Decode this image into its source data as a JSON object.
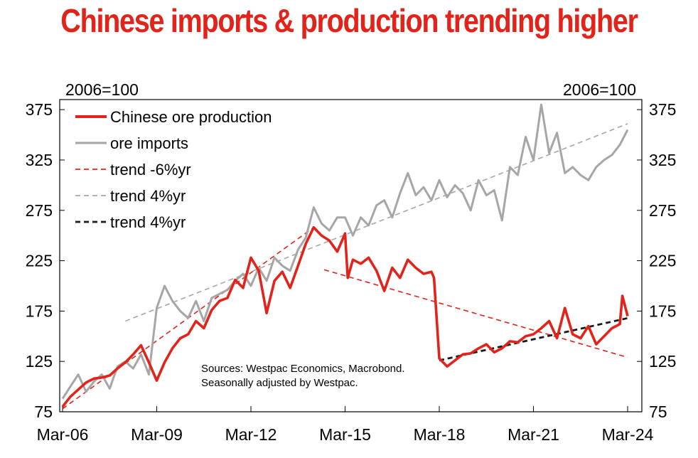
{
  "title": "Chinese imports & production trending higher",
  "chart_data": {
    "type": "line",
    "title": "Chinese imports & production trending higher",
    "xlabel": "",
    "ylabel_left": "2006=100",
    "ylabel_right": "2006=100",
    "ylim": [
      75,
      385
    ],
    "xlim": [
      "2006-03",
      "2024-06"
    ],
    "x_ticks": [
      "Mar-06",
      "Mar-09",
      "Mar-12",
      "Mar-15",
      "Mar-18",
      "Mar-21",
      "Mar-24"
    ],
    "y_ticks": [
      75,
      125,
      175,
      225,
      275,
      325,
      375
    ],
    "grid": false,
    "legend_position": "top-left",
    "note_lines": [
      "Sources: Westpac Economics, Macrobond.",
      "Seasonally adjusted by Westpac."
    ],
    "series": [
      {
        "name": "Chinese ore production",
        "color": "#e2231a",
        "style": "solid",
        "points": [
          [
            "2006-03",
            80
          ],
          [
            "2006-06",
            90
          ],
          [
            "2006-09",
            97
          ],
          [
            "2006-12",
            104
          ],
          [
            "2007-03",
            108
          ],
          [
            "2007-06",
            109
          ],
          [
            "2007-09",
            111
          ],
          [
            "2007-12",
            118
          ],
          [
            "2008-03",
            124
          ],
          [
            "2008-06",
            132
          ],
          [
            "2008-09",
            141
          ],
          [
            "2008-12",
            124
          ],
          [
            "2009-03",
            106
          ],
          [
            "2009-06",
            124
          ],
          [
            "2009-09",
            138
          ],
          [
            "2009-12",
            148
          ],
          [
            "2010-03",
            152
          ],
          [
            "2010-06",
            165
          ],
          [
            "2010-09",
            158
          ],
          [
            "2010-12",
            176
          ],
          [
            "2011-03",
            185
          ],
          [
            "2011-06",
            188
          ],
          [
            "2011-09",
            206
          ],
          [
            "2011-12",
            198
          ],
          [
            "2012-03",
            228
          ],
          [
            "2012-06",
            215
          ],
          [
            "2012-09",
            173
          ],
          [
            "2012-12",
            205
          ],
          [
            "2013-03",
            214
          ],
          [
            "2013-06",
            198
          ],
          [
            "2013-09",
            220
          ],
          [
            "2013-12",
            242
          ],
          [
            "2014-03",
            258
          ],
          [
            "2014-06",
            250
          ],
          [
            "2014-09",
            245
          ],
          [
            "2014-12",
            234
          ],
          [
            "2015-03",
            252
          ],
          [
            "2015-04",
            208
          ],
          [
            "2015-06",
            226
          ],
          [
            "2015-09",
            222
          ],
          [
            "2015-12",
            228
          ],
          [
            "2016-03",
            215
          ],
          [
            "2016-06",
            195
          ],
          [
            "2016-09",
            218
          ],
          [
            "2016-12",
            208
          ],
          [
            "2017-03",
            226
          ],
          [
            "2017-06",
            218
          ],
          [
            "2017-09",
            212
          ],
          [
            "2017-12",
            214
          ],
          [
            "2018-01",
            208
          ],
          [
            "2018-03",
            128
          ],
          [
            "2018-06",
            120
          ],
          [
            "2018-09",
            126
          ],
          [
            "2018-12",
            132
          ],
          [
            "2019-03",
            133
          ],
          [
            "2019-06",
            138
          ],
          [
            "2019-09",
            142
          ],
          [
            "2019-12",
            134
          ],
          [
            "2020-03",
            138
          ],
          [
            "2020-06",
            145
          ],
          [
            "2020-09",
            144
          ],
          [
            "2020-12",
            150
          ],
          [
            "2021-03",
            152
          ],
          [
            "2021-06",
            158
          ],
          [
            "2021-09",
            165
          ],
          [
            "2021-12",
            148
          ],
          [
            "2022-03",
            178
          ],
          [
            "2022-06",
            152
          ],
          [
            "2022-09",
            148
          ],
          [
            "2022-12",
            160
          ],
          [
            "2023-03",
            142
          ],
          [
            "2023-06",
            150
          ],
          [
            "2023-09",
            158
          ],
          [
            "2023-12",
            162
          ],
          [
            "2024-01",
            190
          ],
          [
            "2024-03",
            170
          ]
        ]
      },
      {
        "name": "ore imports",
        "color": "#a6a6a6",
        "style": "solid",
        "points": [
          [
            "2006-03",
            88
          ],
          [
            "2006-06",
            100
          ],
          [
            "2006-09",
            112
          ],
          [
            "2006-12",
            95
          ],
          [
            "2007-03",
            105
          ],
          [
            "2007-06",
            112
          ],
          [
            "2007-09",
            98
          ],
          [
            "2007-12",
            120
          ],
          [
            "2008-03",
            125
          ],
          [
            "2008-06",
            118
          ],
          [
            "2008-09",
            132
          ],
          [
            "2008-12",
            112
          ],
          [
            "2009-03",
            178
          ],
          [
            "2009-06",
            200
          ],
          [
            "2009-09",
            185
          ],
          [
            "2009-12",
            175
          ],
          [
            "2010-03",
            168
          ],
          [
            "2010-06",
            185
          ],
          [
            "2010-09",
            165
          ],
          [
            "2010-12",
            188
          ],
          [
            "2011-03",
            192
          ],
          [
            "2011-06",
            196
          ],
          [
            "2011-09",
            205
          ],
          [
            "2011-12",
            212
          ],
          [
            "2012-03",
            200
          ],
          [
            "2012-06",
            218
          ],
          [
            "2012-09",
            205
          ],
          [
            "2012-12",
            228
          ],
          [
            "2013-03",
            220
          ],
          [
            "2013-06",
            215
          ],
          [
            "2013-09",
            236
          ],
          [
            "2013-12",
            248
          ],
          [
            "2014-03",
            278
          ],
          [
            "2014-06",
            262
          ],
          [
            "2014-09",
            255
          ],
          [
            "2014-12",
            268
          ],
          [
            "2015-03",
            268
          ],
          [
            "2015-06",
            250
          ],
          [
            "2015-09",
            268
          ],
          [
            "2015-12",
            260
          ],
          [
            "2016-03",
            280
          ],
          [
            "2016-06",
            285
          ],
          [
            "2016-09",
            268
          ],
          [
            "2016-12",
            292
          ],
          [
            "2017-03",
            312
          ],
          [
            "2017-06",
            290
          ],
          [
            "2017-09",
            298
          ],
          [
            "2017-12",
            285
          ],
          [
            "2018-03",
            305
          ],
          [
            "2018-06",
            288
          ],
          [
            "2018-09",
            300
          ],
          [
            "2018-12",
            292
          ],
          [
            "2019-03",
            275
          ],
          [
            "2019-06",
            305
          ],
          [
            "2019-09",
            290
          ],
          [
            "2019-12",
            295
          ],
          [
            "2020-03",
            265
          ],
          [
            "2020-06",
            318
          ],
          [
            "2020-09",
            310
          ],
          [
            "2020-12",
            348
          ],
          [
            "2021-03",
            325
          ],
          [
            "2021-06",
            380
          ],
          [
            "2021-09",
            332
          ],
          [
            "2021-12",
            352
          ],
          [
            "2022-03",
            312
          ],
          [
            "2022-06",
            318
          ],
          [
            "2022-09",
            310
          ],
          [
            "2022-12",
            305
          ],
          [
            "2023-03",
            318
          ],
          [
            "2023-06",
            325
          ],
          [
            "2023-09",
            330
          ],
          [
            "2023-12",
            340
          ],
          [
            "2024-03",
            355
          ]
        ]
      },
      {
        "name": "trend -6%yr",
        "color": "#e2231a",
        "style": "dashed",
        "points": [
          [
            "2006-03",
            78
          ],
          [
            "2014-03",
            258
          ]
        ],
        "segment2": [
          [
            "2014-07",
            216
          ],
          [
            "2024-03",
            129
          ]
        ]
      },
      {
        "name": "trend 4%yr",
        "color": "#a6a6a6",
        "style": "dashed",
        "points": [
          [
            "2008-03",
            165
          ],
          [
            "2024-03",
            361
          ]
        ]
      },
      {
        "name": "trend 4%yr",
        "color": "#1a1a1a",
        "style": "dashed",
        "points": [
          [
            "2018-03",
            126
          ],
          [
            "2024-03",
            168
          ]
        ]
      }
    ]
  }
}
